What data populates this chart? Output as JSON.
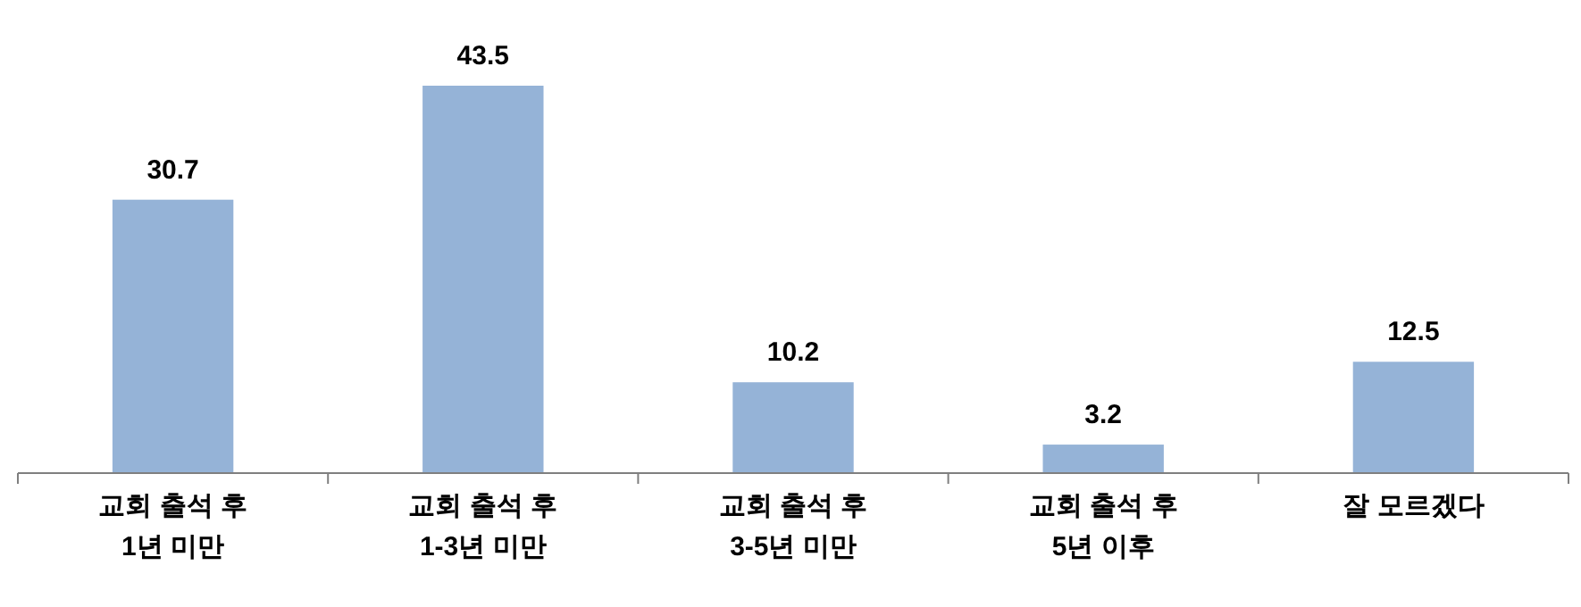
{
  "chart_data": {
    "type": "bar",
    "categories": [
      "교회 출석 후\n1년 미만",
      "교회 출석 후\n1-3년 미만",
      "교회 출석 후\n3-5년 미만",
      "교회 출석 후\n5년 이후",
      "잘 모르겠다"
    ],
    "values": [
      30.7,
      43.5,
      10.2,
      3.2,
      12.5
    ],
    "color": "#95b3d7",
    "data_labels": true
  }
}
